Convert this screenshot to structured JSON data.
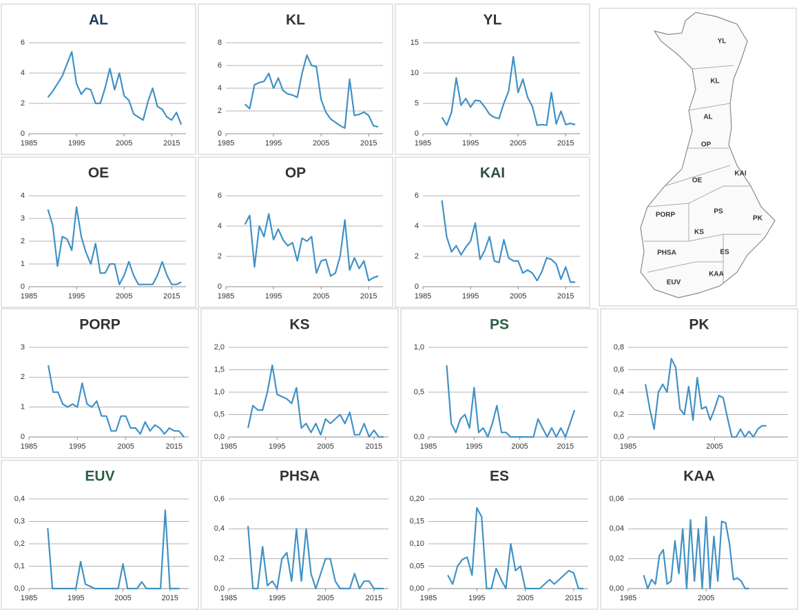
{
  "chart_data": [
    {
      "type": "line",
      "title": "AL",
      "title_color": "#1f3a5f",
      "color": "#3f91c6",
      "grid": true,
      "x": [
        1989,
        1990,
        1991,
        1992,
        1993,
        1994,
        1995,
        1996,
        1997,
        1998,
        1999,
        2000,
        2001,
        2002,
        2003,
        2004,
        2005,
        2006,
        2007,
        2008,
        2009,
        2010,
        2011,
        2012,
        2013,
        2014,
        2015,
        2016,
        2017
      ],
      "values": [
        2.4,
        2.8,
        3.3,
        3.8,
        4.6,
        5.4,
        3.3,
        2.6,
        3.0,
        2.9,
        2.0,
        2.0,
        3.0,
        4.3,
        2.9,
        4.0,
        2.5,
        2.2,
        1.3,
        1.1,
        0.9,
        2.1,
        3.0,
        1.8,
        1.6,
        1.1,
        0.9,
        1.4,
        0.6
      ],
      "xlim": [
        1985,
        2018
      ],
      "xticks": [
        1985,
        1995,
        2005,
        2015
      ],
      "ylim": [
        0,
        6
      ],
      "yticks": [
        0,
        2,
        4,
        6
      ]
    },
    {
      "type": "line",
      "title": "KL",
      "title_color": "#333333",
      "color": "#3f91c6",
      "grid": true,
      "x": [
        1989,
        1990,
        1991,
        1992,
        1993,
        1994,
        1995,
        1996,
        1997,
        1998,
        1999,
        2000,
        2001,
        2002,
        2003,
        2004,
        2005,
        2006,
        2007,
        2008,
        2009,
        2010,
        2011,
        2012,
        2013,
        2014,
        2015,
        2016,
        2017
      ],
      "values": [
        2.6,
        2.2,
        4.3,
        4.5,
        4.6,
        5.3,
        4.0,
        4.9,
        3.8,
        3.5,
        3.4,
        3.2,
        5.3,
        6.9,
        6.0,
        5.9,
        3.0,
        1.9,
        1.3,
        1.0,
        0.7,
        0.5,
        4.8,
        1.6,
        1.7,
        1.9,
        1.6,
        0.7,
        0.6
      ],
      "xlim": [
        1985,
        2018
      ],
      "xticks": [
        1985,
        1995,
        2005,
        2015
      ],
      "ylim": [
        0,
        8
      ],
      "yticks": [
        0,
        2,
        4,
        6,
        8
      ]
    },
    {
      "type": "line",
      "title": "YL",
      "title_color": "#333333",
      "color": "#3f91c6",
      "grid": true,
      "x": [
        1989,
        1990,
        1991,
        1992,
        1993,
        1994,
        1995,
        1996,
        1997,
        1998,
        1999,
        2000,
        2001,
        2002,
        2003,
        2004,
        2005,
        2006,
        2007,
        2008,
        2009,
        2010,
        2011,
        2012,
        2013,
        2014,
        2015,
        2016,
        2017
      ],
      "values": [
        2.7,
        1.4,
        3.5,
        9.2,
        4.7,
        5.8,
        4.4,
        5.5,
        5.4,
        4.4,
        3.2,
        2.7,
        2.5,
        5.0,
        7.0,
        12.7,
        6.8,
        9.0,
        6.0,
        4.5,
        1.4,
        1.5,
        1.4,
        6.8,
        1.6,
        3.7,
        1.5,
        1.7,
        1.5
      ],
      "xlim": [
        1985,
        2018
      ],
      "xticks": [
        1985,
        1995,
        2005,
        2015
      ],
      "ylim": [
        0,
        15
      ],
      "yticks": [
        0,
        5,
        10,
        15
      ]
    },
    {
      "type": "line",
      "title": "OE",
      "title_color": "#333333",
      "color": "#3f91c6",
      "grid": true,
      "x": [
        1989,
        1990,
        1991,
        1992,
        1993,
        1994,
        1995,
        1996,
        1997,
        1998,
        1999,
        2000,
        2001,
        2002,
        2003,
        2004,
        2005,
        2006,
        2007,
        2008,
        2009,
        2010,
        2011,
        2012,
        2013,
        2014,
        2015,
        2016,
        2017
      ],
      "values": [
        3.4,
        2.7,
        0.9,
        2.2,
        2.1,
        1.6,
        3.5,
        2.2,
        1.5,
        1.0,
        1.9,
        0.6,
        0.6,
        1.0,
        1.0,
        0.1,
        0.5,
        1.1,
        0.5,
        0.1,
        0.1,
        0.1,
        0.1,
        0.5,
        1.1,
        0.5,
        0.1,
        0.1,
        0.2
      ],
      "xlim": [
        1985,
        2018
      ],
      "xticks": [
        1985,
        1995,
        2005,
        2015
      ],
      "ylim": [
        0,
        4
      ],
      "yticks": [
        0,
        1,
        2,
        3,
        4
      ]
    },
    {
      "type": "line",
      "title": "OP",
      "title_color": "#333333",
      "color": "#3f91c6",
      "grid": true,
      "x": [
        1989,
        1990,
        1991,
        1992,
        1993,
        1994,
        1995,
        1996,
        1997,
        1998,
        1999,
        2000,
        2001,
        2002,
        2003,
        2004,
        2005,
        2006,
        2007,
        2008,
        2009,
        2010,
        2011,
        2012,
        2013,
        2014,
        2015,
        2016,
        2017
      ],
      "values": [
        4.1,
        4.7,
        1.3,
        4.0,
        3.3,
        4.8,
        3.1,
        3.8,
        3.1,
        2.7,
        2.9,
        1.7,
        3.2,
        3.0,
        3.3,
        0.9,
        1.7,
        1.8,
        0.7,
        0.9,
        2.0,
        4.4,
        1.1,
        1.9,
        1.2,
        1.7,
        0.4,
        0.6,
        0.7
      ],
      "xlim": [
        1985,
        2018
      ],
      "xticks": [
        1985,
        1995,
        2005,
        2015
      ],
      "ylim": [
        0,
        6
      ],
      "yticks": [
        0,
        2,
        4,
        6
      ]
    },
    {
      "type": "line",
      "title": "KAI",
      "title_color": "#2d4f40",
      "color": "#3f91c6",
      "grid": true,
      "x": [
        1989,
        1990,
        1991,
        1992,
        1993,
        1994,
        1995,
        1996,
        1997,
        1998,
        1999,
        2000,
        2001,
        2002,
        2003,
        2004,
        2005,
        2006,
        2007,
        2008,
        2009,
        2010,
        2011,
        2012,
        2013,
        2014,
        2015,
        2016,
        2017
      ],
      "values": [
        5.7,
        3.3,
        2.3,
        2.7,
        2.1,
        2.6,
        3.0,
        4.2,
        1.8,
        2.4,
        3.3,
        1.7,
        1.6,
        3.1,
        1.9,
        1.7,
        1.7,
        0.9,
        1.1,
        0.9,
        0.4,
        1.0,
        1.9,
        1.8,
        1.5,
        0.5,
        1.3,
        0.3,
        0.3
      ],
      "xlim": [
        1985,
        2018
      ],
      "xticks": [
        1985,
        1995,
        2005,
        2015
      ],
      "ylim": [
        0,
        6
      ],
      "yticks": [
        0,
        2,
        4,
        6
      ]
    },
    {
      "type": "line",
      "title": "PORP",
      "title_color": "#333333",
      "color": "#3f91c6",
      "grid": true,
      "x": [
        1989,
        1990,
        1991,
        1992,
        1993,
        1994,
        1995,
        1996,
        1997,
        1998,
        1999,
        2000,
        2001,
        2002,
        2003,
        2004,
        2005,
        2006,
        2007,
        2008,
        2009,
        2010,
        2011,
        2012,
        2013,
        2014,
        2015,
        2016,
        2017
      ],
      "values": [
        2.4,
        1.5,
        1.5,
        1.1,
        1.0,
        1.1,
        1.0,
        1.8,
        1.1,
        1.0,
        1.2,
        0.7,
        0.7,
        0.2,
        0.2,
        0.7,
        0.7,
        0.3,
        0.3,
        0.1,
        0.5,
        0.2,
        0.4,
        0.3,
        0.1,
        0.3,
        0.2,
        0.2,
        0.0
      ],
      "xlim": [
        1985,
        2018
      ],
      "xticks": [
        1985,
        1995,
        2005,
        2015
      ],
      "ylim": [
        0,
        3
      ],
      "yticks": [
        0,
        1,
        2,
        3
      ]
    },
    {
      "type": "line",
      "title": "KS",
      "title_color": "#333333",
      "color": "#3f91c6",
      "grid": true,
      "x": [
        1989,
        1990,
        1991,
        1992,
        1993,
        1994,
        1995,
        1996,
        1997,
        1998,
        1999,
        2000,
        2001,
        2002,
        2003,
        2004,
        2005,
        2006,
        2007,
        2008,
        2009,
        2010,
        2011,
        2012,
        2013,
        2014,
        2015,
        2016,
        2017
      ],
      "values": [
        0.2,
        0.7,
        0.6,
        0.6,
        1.0,
        1.6,
        0.95,
        0.9,
        0.85,
        0.75,
        1.1,
        0.2,
        0.3,
        0.1,
        0.3,
        0.05,
        0.4,
        0.3,
        0.4,
        0.5,
        0.3,
        0.55,
        0.05,
        0.05,
        0.3,
        0.0,
        0.15,
        0.0,
        0.0
      ],
      "xlim": [
        1985,
        2018
      ],
      "xticks": [
        1985,
        1995,
        2005,
        2015
      ],
      "ylim": [
        0,
        2
      ],
      "yticks": [
        {
          "value": 0,
          "label": "0,0"
        },
        {
          "value": 0.5,
          "label": "0,5"
        },
        {
          "value": 1,
          "label": "1,0"
        },
        {
          "value": 1.5,
          "label": "1,5"
        },
        {
          "value": 2,
          "label": "2,0"
        }
      ]
    },
    {
      "type": "line",
      "title": "PS",
      "title_color": "#2d5f45",
      "color": "#3f91c6",
      "grid": true,
      "x": [
        1989,
        1990,
        1991,
        1992,
        1993,
        1994,
        1995,
        1996,
        1997,
        1998,
        1999,
        2000,
        2001,
        2002,
        2003,
        2004,
        2005,
        2006,
        2007,
        2008,
        2009,
        2010,
        2011,
        2012,
        2013,
        2014,
        2015,
        2016,
        2017
      ],
      "values": [
        0.8,
        0.15,
        0.05,
        0.2,
        0.25,
        0.1,
        0.55,
        0.05,
        0.1,
        0.0,
        0.15,
        0.35,
        0.05,
        0.05,
        0.0,
        0.0,
        0.0,
        0.0,
        0.0,
        0.0,
        0.2,
        0.1,
        0.0,
        0.1,
        0.0,
        0.1,
        0.0,
        0.15,
        0.3
      ],
      "xlim": [
        1985,
        2020
      ],
      "xticks": [
        1985,
        1995,
        2005,
        2015
      ],
      "ylim": [
        0,
        1
      ],
      "yticks": [
        {
          "value": 0,
          "label": "0,0"
        },
        {
          "value": 0.5,
          "label": "0,5"
        },
        {
          "value": 1,
          "label": "1,0"
        }
      ]
    },
    {
      "type": "line",
      "title": "PK",
      "title_color": "#333333",
      "color": "#3f91c6",
      "grid": true,
      "x": [
        1989,
        1990,
        1991,
        1992,
        1993,
        1994,
        1995,
        1996,
        1997,
        1998,
        1999,
        2000,
        2001,
        2002,
        2003,
        2004,
        2005,
        2006,
        2007,
        2008,
        2009,
        2010,
        2011,
        2012,
        2013,
        2014,
        2015,
        2016,
        2017
      ],
      "values": [
        0.47,
        0.25,
        0.07,
        0.4,
        0.47,
        0.4,
        0.7,
        0.62,
        0.25,
        0.2,
        0.45,
        0.15,
        0.53,
        0.25,
        0.27,
        0.15,
        0.25,
        0.37,
        0.35,
        0.17,
        0.0,
        0.0,
        0.07,
        0.0,
        0.05,
        0.0,
        0.07,
        0.1,
        0.1
      ],
      "xlim": [
        1985,
        2022
      ],
      "xticks": [
        1985,
        2005
      ],
      "ylim": [
        0,
        0.8
      ],
      "yticks": [
        {
          "value": 0,
          "label": "0,0"
        },
        {
          "value": 0.2,
          "label": "0,2"
        },
        {
          "value": 0.4,
          "label": "0,4"
        },
        {
          "value": 0.6,
          "label": "0,6"
        },
        {
          "value": 0.8,
          "label": "0,8"
        }
      ]
    },
    {
      "type": "line",
      "title": "EUV",
      "title_color": "#2d5f45",
      "color": "#3f91c6",
      "grid": true,
      "x": [
        1989,
        1990,
        1991,
        1992,
        1993,
        1994,
        1995,
        1996,
        1997,
        1998,
        1999,
        2000,
        2001,
        2002,
        2003,
        2004,
        2005,
        2006,
        2007,
        2008,
        2009,
        2010,
        2011,
        2012,
        2013,
        2014,
        2015,
        2016,
        2017
      ],
      "values": [
        0.27,
        0,
        0,
        0,
        0,
        0,
        0,
        0.12,
        0.02,
        0.01,
        0,
        0,
        0,
        0,
        0,
        0,
        0.11,
        0,
        0,
        0,
        0.03,
        0,
        0,
        0,
        0,
        0.35,
        0,
        0,
        0
      ],
      "xlim": [
        1985,
        2019
      ],
      "xticks": [
        1985,
        1995,
        2005,
        2015
      ],
      "ylim": [
        0,
        0.4
      ],
      "yticks": [
        {
          "value": 0,
          "label": "0,0"
        },
        {
          "value": 0.1,
          "label": "0,1"
        },
        {
          "value": 0.2,
          "label": "0,2"
        },
        {
          "value": 0.3,
          "label": "0,3"
        },
        {
          "value": 0.4,
          "label": "0,4"
        }
      ]
    },
    {
      "type": "line",
      "title": "PHSA",
      "title_color": "#333333",
      "color": "#3f91c6",
      "grid": true,
      "x": [
        1989,
        1990,
        1991,
        1992,
        1993,
        1994,
        1995,
        1996,
        1997,
        1998,
        1999,
        2000,
        2001,
        2002,
        2003,
        2004,
        2005,
        2006,
        2007,
        2008,
        2009,
        2010,
        2011,
        2012,
        2013,
        2014,
        2015,
        2016,
        2017
      ],
      "values": [
        0.42,
        0.0,
        0.0,
        0.28,
        0.02,
        0.05,
        0.0,
        0.2,
        0.24,
        0.05,
        0.4,
        0.05,
        0.4,
        0.1,
        0.0,
        0.1,
        0.2,
        0.2,
        0.05,
        0.0,
        0.0,
        0.0,
        0.1,
        0.0,
        0.05,
        0.05,
        0.0,
        0.0,
        0.0
      ],
      "xlim": [
        1985,
        2018
      ],
      "xticks": [
        1985,
        1995,
        2005,
        2015
      ],
      "ylim": [
        0,
        0.6
      ],
      "yticks": [
        {
          "value": 0,
          "label": "0,0"
        },
        {
          "value": 0.2,
          "label": "0,2"
        },
        {
          "value": 0.4,
          "label": "0,4"
        },
        {
          "value": 0.6,
          "label": "0,6"
        }
      ]
    },
    {
      "type": "line",
      "title": "ES",
      "title_color": "#333333",
      "color": "#3f91c6",
      "grid": true,
      "x": [
        1989,
        1990,
        1991,
        1992,
        1993,
        1994,
        1995,
        1996,
        1997,
        1998,
        1999,
        2000,
        2001,
        2002,
        2003,
        2004,
        2005,
        2006,
        2007,
        2008,
        2009,
        2010,
        2011,
        2012,
        2013,
        2014,
        2015,
        2016,
        2017
      ],
      "values": [
        0.03,
        0.01,
        0.05,
        0.065,
        0.07,
        0.03,
        0.18,
        0.16,
        0.0,
        0.0,
        0.045,
        0.02,
        0.0,
        0.1,
        0.04,
        0.05,
        0.0,
        0.0,
        0.0,
        0.0,
        0.01,
        0.02,
        0.01,
        0.02,
        0.03,
        0.04,
        0.035,
        0.0,
        0.0
      ],
      "xlim": [
        1985,
        2018
      ],
      "xticks": [
        1985,
        1995,
        2005,
        2015
      ],
      "ylim": [
        0,
        0.2
      ],
      "yticks": [
        {
          "value": 0,
          "label": "0,00"
        },
        {
          "value": 0.05,
          "label": "0,05"
        },
        {
          "value": 0.1,
          "label": "0,10"
        },
        {
          "value": 0.15,
          "label": "0,15"
        },
        {
          "value": 0.2,
          "label": "0,20"
        }
      ]
    },
    {
      "type": "line",
      "title": "KAA",
      "title_color": "#333333",
      "color": "#3f91c6",
      "grid": true,
      "x": [
        1989,
        1990,
        1991,
        1992,
        1993,
        1994,
        1995,
        1996,
        1997,
        1998,
        1999,
        2000,
        2001,
        2002,
        2003,
        2004,
        2005,
        2006,
        2007,
        2008,
        2009,
        2010,
        2011,
        2012,
        2013,
        2014,
        2015,
        2016
      ],
      "values": [
        0.009,
        0.0,
        0.006,
        0.003,
        0.022,
        0.026,
        0.003,
        0.005,
        0.032,
        0.01,
        0.04,
        0.0,
        0.046,
        0.005,
        0.04,
        0.0,
        0.048,
        0.0,
        0.035,
        0.005,
        0.045,
        0.044,
        0.03,
        0.006,
        0.007,
        0.005,
        0.0,
        0.0
      ],
      "xlim": [
        1985,
        2026
      ],
      "xticks": [
        1985,
        2005
      ],
      "ylim": [
        0,
        0.06
      ],
      "yticks": [
        {
          "value": 0,
          "label": "0,00"
        },
        {
          "value": 0.02,
          "label": "0,02"
        },
        {
          "value": 0.04,
          "label": "0,04"
        },
        {
          "value": 0.06,
          "label": "0,06"
        }
      ]
    }
  ],
  "map": {
    "labels": [
      "YL",
      "KL",
      "AL",
      "OP",
      "KAI",
      "OE",
      "PORP",
      "PS",
      "PK",
      "KS",
      "PHSA",
      "ES",
      "EUV",
      "KAA"
    ]
  }
}
